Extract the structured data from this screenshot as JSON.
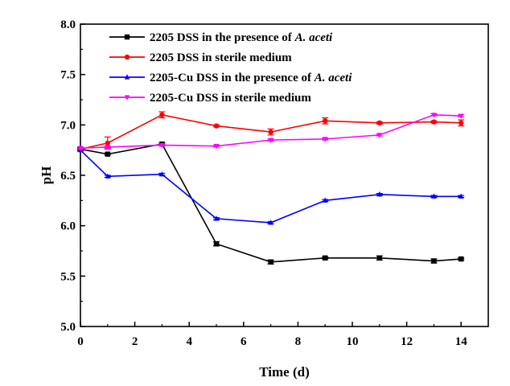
{
  "chart_data": {
    "type": "line",
    "title": "",
    "xlabel": "Time (d)",
    "ylabel": "pH",
    "xlim": [
      0,
      15
    ],
    "ylim": [
      5.0,
      8.0
    ],
    "xticks": [
      "0",
      "2",
      "4",
      "6",
      "8",
      "10",
      "12",
      "14"
    ],
    "yticks": [
      "5.0",
      "5.5",
      "6.0",
      "6.5",
      "7.0",
      "7.5",
      "8.0"
    ],
    "grid": false,
    "legend_position": "top-left",
    "series": [
      {
        "name": "2205 DSS in the presence of ",
        "name_italic": "A. aceti",
        "color": "#000000",
        "marker": "square",
        "x": [
          0,
          1,
          3,
          5,
          7,
          9,
          11,
          13,
          14
        ],
        "y": [
          6.76,
          6.71,
          6.81,
          5.82,
          5.64,
          5.68,
          5.68,
          5.65,
          5.67
        ],
        "err": [
          0.01,
          0.01,
          0.01,
          0.02,
          0.02,
          0.01,
          0.02,
          0.02,
          0.01
        ]
      },
      {
        "name": "2205 DSS in sterile medium",
        "name_italic": "",
        "color": "#ff0000",
        "marker": "circle",
        "x": [
          0,
          1,
          3,
          5,
          7,
          9,
          11,
          13,
          14
        ],
        "y": [
          6.76,
          6.82,
          7.1,
          6.99,
          6.93,
          7.04,
          7.02,
          7.03,
          7.02
        ],
        "err": [
          0.02,
          0.06,
          0.03,
          0.01,
          0.03,
          0.03,
          0.01,
          0.01,
          0.03
        ]
      },
      {
        "name": "2205-Cu DSS in the presence of ",
        "name_italic": "A. aceti",
        "color": "#0000ff",
        "marker": "triangle-up",
        "x": [
          0,
          1,
          3,
          5,
          7,
          9,
          11,
          13,
          14
        ],
        "y": [
          6.75,
          6.49,
          6.51,
          6.07,
          6.03,
          6.25,
          6.31,
          6.29,
          6.29
        ],
        "err": [
          0.01,
          0.01,
          0.01,
          0.01,
          0.01,
          0.01,
          0.01,
          0.01,
          0.01
        ]
      },
      {
        "name": "2205-Cu DSS in sterile medium",
        "name_italic": "",
        "color": "#ff00ff",
        "marker": "triangle-down",
        "x": [
          0,
          1,
          3,
          5,
          7,
          9,
          11,
          13,
          14
        ],
        "y": [
          6.77,
          6.78,
          6.8,
          6.79,
          6.85,
          6.86,
          6.9,
          7.1,
          7.09
        ],
        "err": [
          0.01,
          0.01,
          0.01,
          0.01,
          0.01,
          0.01,
          0.01,
          0.01,
          0.01
        ]
      }
    ]
  }
}
